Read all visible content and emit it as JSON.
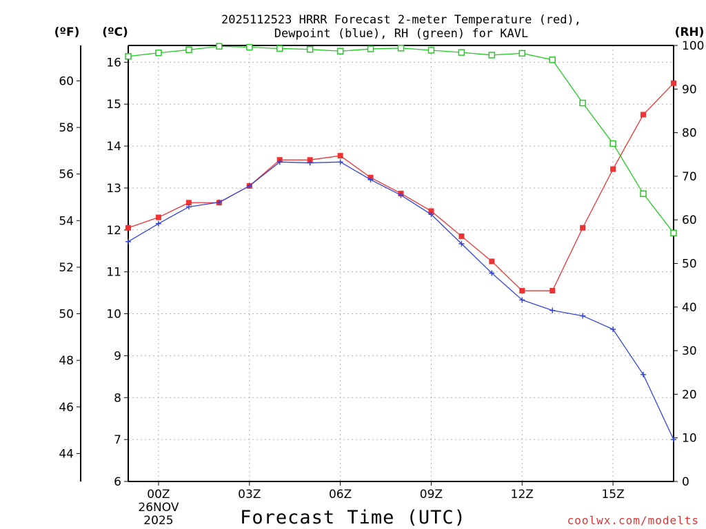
{
  "chart_data": {
    "type": "line",
    "title_lines": [
      "2025112523 HRRR Forecast 2-meter Temperature (red),",
      "Dewpoint (blue), RH (green) for KAVL"
    ],
    "xlabel": "Forecast Time (UTC)",
    "credit": "coolwx.com/modelts",
    "left_f_unit": "(ºF)",
    "left_c_unit": "(ºC)",
    "right_unit": "(RH)",
    "x": [
      -1,
      0,
      1,
      2,
      3,
      4,
      5,
      6,
      7,
      8,
      9,
      10,
      11,
      12,
      13,
      14,
      15,
      16,
      17
    ],
    "xlim": [
      -1,
      17
    ],
    "x_ticks": [
      {
        "x": 0,
        "label": "00Z",
        "sub": [
          "26NOV",
          "2025"
        ]
      },
      {
        "x": 3,
        "label": "03Z",
        "sub": []
      },
      {
        "x": 6,
        "label": "06Z",
        "sub": []
      },
      {
        "x": 9,
        "label": "09Z",
        "sub": []
      },
      {
        "x": 12,
        "label": "12Z",
        "sub": []
      },
      {
        "x": 15,
        "label": "15Z",
        "sub": []
      }
    ],
    "celsius_axis": {
      "ylim": [
        6,
        16.4
      ],
      "ticks": [
        "6",
        "7",
        "8",
        "9",
        "10",
        "11",
        "12",
        "13",
        "14",
        "15",
        "16"
      ]
    },
    "fahrenheit_axis": {
      "ticks": [
        "44",
        "46",
        "48",
        "50",
        "52",
        "54",
        "56",
        "58",
        "60"
      ]
    },
    "rh_axis": {
      "ylim": [
        0,
        100
      ],
      "ticks": [
        "0",
        "10",
        "20",
        "30",
        "40",
        "50",
        "60",
        "70",
        "80",
        "90",
        "100"
      ]
    },
    "series": [
      {
        "name": "2-meter Temperature",
        "color": "#ee3333",
        "marker": "filled-square",
        "axis": "celsius",
        "values": [
          12.05,
          12.3,
          12.65,
          12.65,
          13.05,
          13.67,
          13.67,
          13.77,
          13.25,
          12.87,
          12.45,
          11.85,
          11.25,
          10.55,
          10.55,
          12.05,
          13.45,
          14.75,
          15.5
        ]
      },
      {
        "name": "Dewpoint",
        "color": "#3344dd",
        "marker": "plus",
        "axis": "celsius",
        "values": [
          11.72,
          12.15,
          12.55,
          12.66,
          13.05,
          13.62,
          13.6,
          13.62,
          13.2,
          12.83,
          12.37,
          11.67,
          10.97,
          10.33,
          10.08,
          9.95,
          9.63,
          8.55,
          7.0
        ]
      },
      {
        "name": "RH",
        "color": "#22cc22",
        "marker": "open-square",
        "axis": "rh",
        "values": [
          97.5,
          98.3,
          99.0,
          99.8,
          99.6,
          99.3,
          99.1,
          98.7,
          99.2,
          99.4,
          98.9,
          98.4,
          97.8,
          98.2,
          96.7,
          86.8,
          77.5,
          66.0,
          57.0
        ]
      }
    ]
  }
}
